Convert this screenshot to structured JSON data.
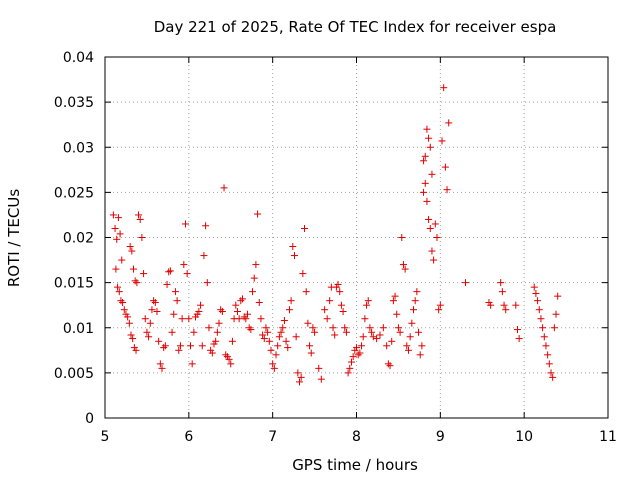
{
  "chart_data": {
    "type": "scatter",
    "title": "Day 221 of 2025, Rate Of TEC Index for receiver espa",
    "xlabel": "GPS time / hours",
    "ylabel": "ROTI / TECUs",
    "xlim": [
      5,
      11
    ],
    "ylim": [
      0,
      0.04
    ],
    "x_ticks": [
      5,
      6,
      7,
      8,
      9,
      10,
      11
    ],
    "y_ticks": [
      0,
      0.005,
      0.01,
      0.015,
      0.02,
      0.025,
      0.03,
      0.035,
      0.04
    ],
    "x_tick_labels": [
      "5",
      "6",
      "7",
      "8",
      "9",
      "10",
      "11"
    ],
    "y_tick_labels": [
      "0",
      "0.005",
      "0.01",
      "0.015",
      "0.02",
      "0.025",
      "0.03",
      "0.035",
      "0.04"
    ],
    "grid": true,
    "marker": "+",
    "marker_color": "#e00000",
    "series": [
      {
        "name": "ROTI",
        "points": [
          [
            5.1,
            0.0225
          ],
          [
            5.12,
            0.021
          ],
          [
            5.14,
            0.0198
          ],
          [
            5.16,
            0.0222
          ],
          [
            5.18,
            0.0204
          ],
          [
            5.2,
            0.0175
          ],
          [
            5.13,
            0.0165
          ],
          [
            5.15,
            0.0145
          ],
          [
            5.17,
            0.014
          ],
          [
            5.19,
            0.013
          ],
          [
            5.21,
            0.0128
          ],
          [
            5.23,
            0.012
          ],
          [
            5.25,
            0.0115
          ],
          [
            5.27,
            0.0112
          ],
          [
            5.29,
            0.0105
          ],
          [
            5.31,
            0.0092
          ],
          [
            5.33,
            0.0088
          ],
          [
            5.35,
            0.0078
          ],
          [
            5.37,
            0.0075
          ],
          [
            5.3,
            0.019
          ],
          [
            5.32,
            0.0185
          ],
          [
            5.34,
            0.0165
          ],
          [
            5.36,
            0.0152
          ],
          [
            5.38,
            0.015
          ],
          [
            5.4,
            0.0225
          ],
          [
            5.42,
            0.022
          ],
          [
            5.44,
            0.02
          ],
          [
            5.46,
            0.016
          ],
          [
            5.48,
            0.011
          ],
          [
            5.5,
            0.0095
          ],
          [
            5.52,
            0.009
          ],
          [
            5.54,
            0.0105
          ],
          [
            5.56,
            0.012
          ],
          [
            5.58,
            0.013
          ],
          [
            5.6,
            0.0128
          ],
          [
            5.62,
            0.0118
          ],
          [
            5.64,
            0.0085
          ],
          [
            5.66,
            0.006
          ],
          [
            5.68,
            0.0055
          ],
          [
            5.7,
            0.0078
          ],
          [
            5.72,
            0.008
          ],
          [
            5.74,
            0.0148
          ],
          [
            5.76,
            0.0162
          ],
          [
            5.78,
            0.0163
          ],
          [
            5.8,
            0.0095
          ],
          [
            5.82,
            0.0115
          ],
          [
            5.84,
            0.014
          ],
          [
            5.86,
            0.013
          ],
          [
            5.88,
            0.0075
          ],
          [
            5.9,
            0.008
          ],
          [
            5.92,
            0.011
          ],
          [
            5.94,
            0.017
          ],
          [
            5.96,
            0.0215
          ],
          [
            5.98,
            0.016
          ],
          [
            6.0,
            0.011
          ],
          [
            6.02,
            0.008
          ],
          [
            6.04,
            0.006
          ],
          [
            6.06,
            0.0095
          ],
          [
            6.08,
            0.0112
          ],
          [
            6.1,
            0.0115
          ],
          [
            6.12,
            0.0118
          ],
          [
            6.14,
            0.0125
          ],
          [
            6.16,
            0.008
          ],
          [
            6.18,
            0.018
          ],
          [
            6.2,
            0.0213
          ],
          [
            6.22,
            0.015
          ],
          [
            6.24,
            0.01
          ],
          [
            6.26,
            0.0075
          ],
          [
            6.28,
            0.0072
          ],
          [
            6.3,
            0.0082
          ],
          [
            6.32,
            0.0085
          ],
          [
            6.34,
            0.0095
          ],
          [
            6.36,
            0.0105
          ],
          [
            6.38,
            0.012
          ],
          [
            6.4,
            0.0118
          ],
          [
            6.42,
            0.0255
          ],
          [
            6.44,
            0.007
          ],
          [
            6.46,
            0.0068
          ],
          [
            6.48,
            0.0065
          ],
          [
            6.5,
            0.006
          ],
          [
            6.52,
            0.0085
          ],
          [
            6.54,
            0.011
          ],
          [
            6.56,
            0.0125
          ],
          [
            6.58,
            0.0118
          ],
          [
            6.6,
            0.011
          ],
          [
            6.62,
            0.013
          ],
          [
            6.64,
            0.0132
          ],
          [
            6.66,
            0.0112
          ],
          [
            6.68,
            0.011
          ],
          [
            6.7,
            0.0115
          ],
          [
            6.72,
            0.01
          ],
          [
            6.74,
            0.0098
          ],
          [
            6.76,
            0.014
          ],
          [
            6.78,
            0.0155
          ],
          [
            6.8,
            0.017
          ],
          [
            6.82,
            0.0226
          ],
          [
            6.84,
            0.0128
          ],
          [
            6.86,
            0.011
          ],
          [
            6.88,
            0.0092
          ],
          [
            6.9,
            0.0088
          ],
          [
            6.92,
            0.01
          ],
          [
            6.94,
            0.0095
          ],
          [
            6.96,
            0.0085
          ],
          [
            6.98,
            0.0075
          ],
          [
            7.0,
            0.006
          ],
          [
            7.02,
            0.0055
          ],
          [
            7.04,
            0.007
          ],
          [
            7.06,
            0.008
          ],
          [
            7.08,
            0.009
          ],
          [
            7.1,
            0.0095
          ],
          [
            7.12,
            0.01
          ],
          [
            7.14,
            0.0108
          ],
          [
            7.16,
            0.0085
          ],
          [
            7.18,
            0.0078
          ],
          [
            7.2,
            0.012
          ],
          [
            7.22,
            0.013
          ],
          [
            7.24,
            0.019
          ],
          [
            7.26,
            0.018
          ],
          [
            7.28,
            0.009
          ],
          [
            7.3,
            0.005
          ],
          [
            7.32,
            0.004
          ],
          [
            7.34,
            0.0045
          ],
          [
            7.36,
            0.016
          ],
          [
            7.38,
            0.021
          ],
          [
            7.4,
            0.014
          ],
          [
            7.42,
            0.0105
          ],
          [
            7.44,
            0.008
          ],
          [
            7.46,
            0.0072
          ],
          [
            7.48,
            0.01
          ],
          [
            7.5,
            0.0095
          ],
          [
            7.55,
            0.0055
          ],
          [
            7.58,
            0.0043
          ],
          [
            7.62,
            0.012
          ],
          [
            7.65,
            0.011
          ],
          [
            7.68,
            0.013
          ],
          [
            7.7,
            0.0145
          ],
          [
            7.72,
            0.01
          ],
          [
            7.74,
            0.0092
          ],
          [
            7.76,
            0.0145
          ],
          [
            7.78,
            0.0148
          ],
          [
            7.8,
            0.014
          ],
          [
            7.82,
            0.0125
          ],
          [
            7.84,
            0.0118
          ],
          [
            7.86,
            0.01
          ],
          [
            7.88,
            0.0095
          ],
          [
            7.9,
            0.005
          ],
          [
            7.92,
            0.0055
          ],
          [
            7.94,
            0.0062
          ],
          [
            7.96,
            0.0068
          ],
          [
            7.98,
            0.0075
          ],
          [
            8.0,
            0.0078
          ],
          [
            8.02,
            0.007
          ],
          [
            8.04,
            0.0072
          ],
          [
            8.06,
            0.008
          ],
          [
            8.08,
            0.009
          ],
          [
            8.1,
            0.011
          ],
          [
            8.12,
            0.0125
          ],
          [
            8.14,
            0.013
          ],
          [
            8.16,
            0.01
          ],
          [
            8.18,
            0.0095
          ],
          [
            8.2,
            0.009
          ],
          [
            8.24,
            0.0088
          ],
          [
            8.28,
            0.0092
          ],
          [
            8.32,
            0.01
          ],
          [
            8.36,
            0.008
          ],
          [
            8.38,
            0.006
          ],
          [
            8.4,
            0.0058
          ],
          [
            8.42,
            0.0085
          ],
          [
            8.44,
            0.013
          ],
          [
            8.46,
            0.0135
          ],
          [
            8.48,
            0.0115
          ],
          [
            8.5,
            0.01
          ],
          [
            8.52,
            0.0095
          ],
          [
            8.54,
            0.02
          ],
          [
            8.56,
            0.017
          ],
          [
            8.58,
            0.0165
          ],
          [
            8.6,
            0.008
          ],
          [
            8.62,
            0.0075
          ],
          [
            8.64,
            0.009
          ],
          [
            8.66,
            0.0105
          ],
          [
            8.68,
            0.012
          ],
          [
            8.7,
            0.013
          ],
          [
            8.72,
            0.014
          ],
          [
            8.74,
            0.0095
          ],
          [
            8.76,
            0.007
          ],
          [
            8.78,
            0.008
          ],
          [
            8.8,
            0.025
          ],
          [
            8.82,
            0.029
          ],
          [
            8.84,
            0.032
          ],
          [
            8.86,
            0.031
          ],
          [
            8.88,
            0.03
          ],
          [
            8.9,
            0.027
          ],
          [
            8.8,
            0.0285
          ],
          [
            8.82,
            0.026
          ],
          [
            8.84,
            0.024
          ],
          [
            8.86,
            0.022
          ],
          [
            8.88,
            0.021
          ],
          [
            8.9,
            0.0185
          ],
          [
            8.92,
            0.0175
          ],
          [
            8.94,
            0.0215
          ],
          [
            8.96,
            0.02
          ],
          [
            8.98,
            0.012
          ],
          [
            9.0,
            0.0125
          ],
          [
            9.02,
            0.0307
          ],
          [
            9.04,
            0.0366
          ],
          [
            9.06,
            0.0278
          ],
          [
            9.08,
            0.0253
          ],
          [
            9.1,
            0.0327
          ],
          [
            9.3,
            0.015
          ],
          [
            9.58,
            0.0128
          ],
          [
            9.6,
            0.0125
          ],
          [
            9.72,
            0.015
          ],
          [
            9.74,
            0.014
          ],
          [
            9.76,
            0.0125
          ],
          [
            9.78,
            0.012
          ],
          [
            9.9,
            0.0125
          ],
          [
            9.92,
            0.0098
          ],
          [
            9.94,
            0.0088
          ],
          [
            10.12,
            0.0145
          ],
          [
            10.14,
            0.0138
          ],
          [
            10.16,
            0.013
          ],
          [
            10.18,
            0.012
          ],
          [
            10.2,
            0.011
          ],
          [
            10.22,
            0.01
          ],
          [
            10.24,
            0.009
          ],
          [
            10.26,
            0.008
          ],
          [
            10.28,
            0.007
          ],
          [
            10.3,
            0.006
          ],
          [
            10.32,
            0.005
          ],
          [
            10.34,
            0.0045
          ],
          [
            10.36,
            0.01
          ],
          [
            10.38,
            0.0115
          ],
          [
            10.4,
            0.0135
          ]
        ]
      }
    ]
  }
}
